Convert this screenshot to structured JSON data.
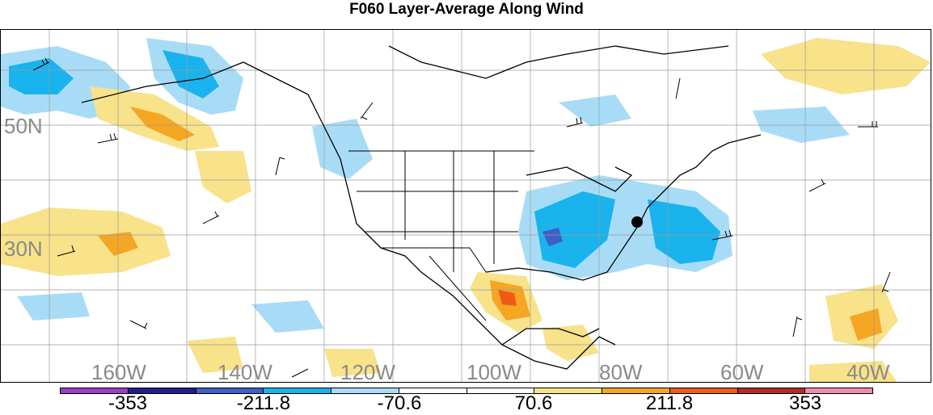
{
  "title": "F060 Layer-Average Along Wind",
  "map": {
    "lat_labels": [
      "50N",
      "30N"
    ],
    "lon_labels": [
      "160W",
      "140W",
      "120W",
      "100W",
      "80W",
      "60W",
      "40W"
    ]
  },
  "colorbar": {
    "colors": [
      "#9a3fc8",
      "#1e1e8c",
      "#3c5fc8",
      "#19b3ee",
      "#a8dcf6",
      "#ffffff",
      "#ffffff",
      "#f8e28a",
      "#f5a623",
      "#f05a18",
      "#b42828",
      "#f08cb4"
    ],
    "labels": [
      "-353",
      "-211.8",
      "-70.6",
      "70.6",
      "211.8",
      "353"
    ]
  },
  "colors": {
    "strong_negative": "#19b3ee",
    "weak_negative": "#a8dcf6",
    "weak_positive": "#f8e28a",
    "strong_positive": "#f5a623",
    "peak_positive": "#f05a18"
  }
}
